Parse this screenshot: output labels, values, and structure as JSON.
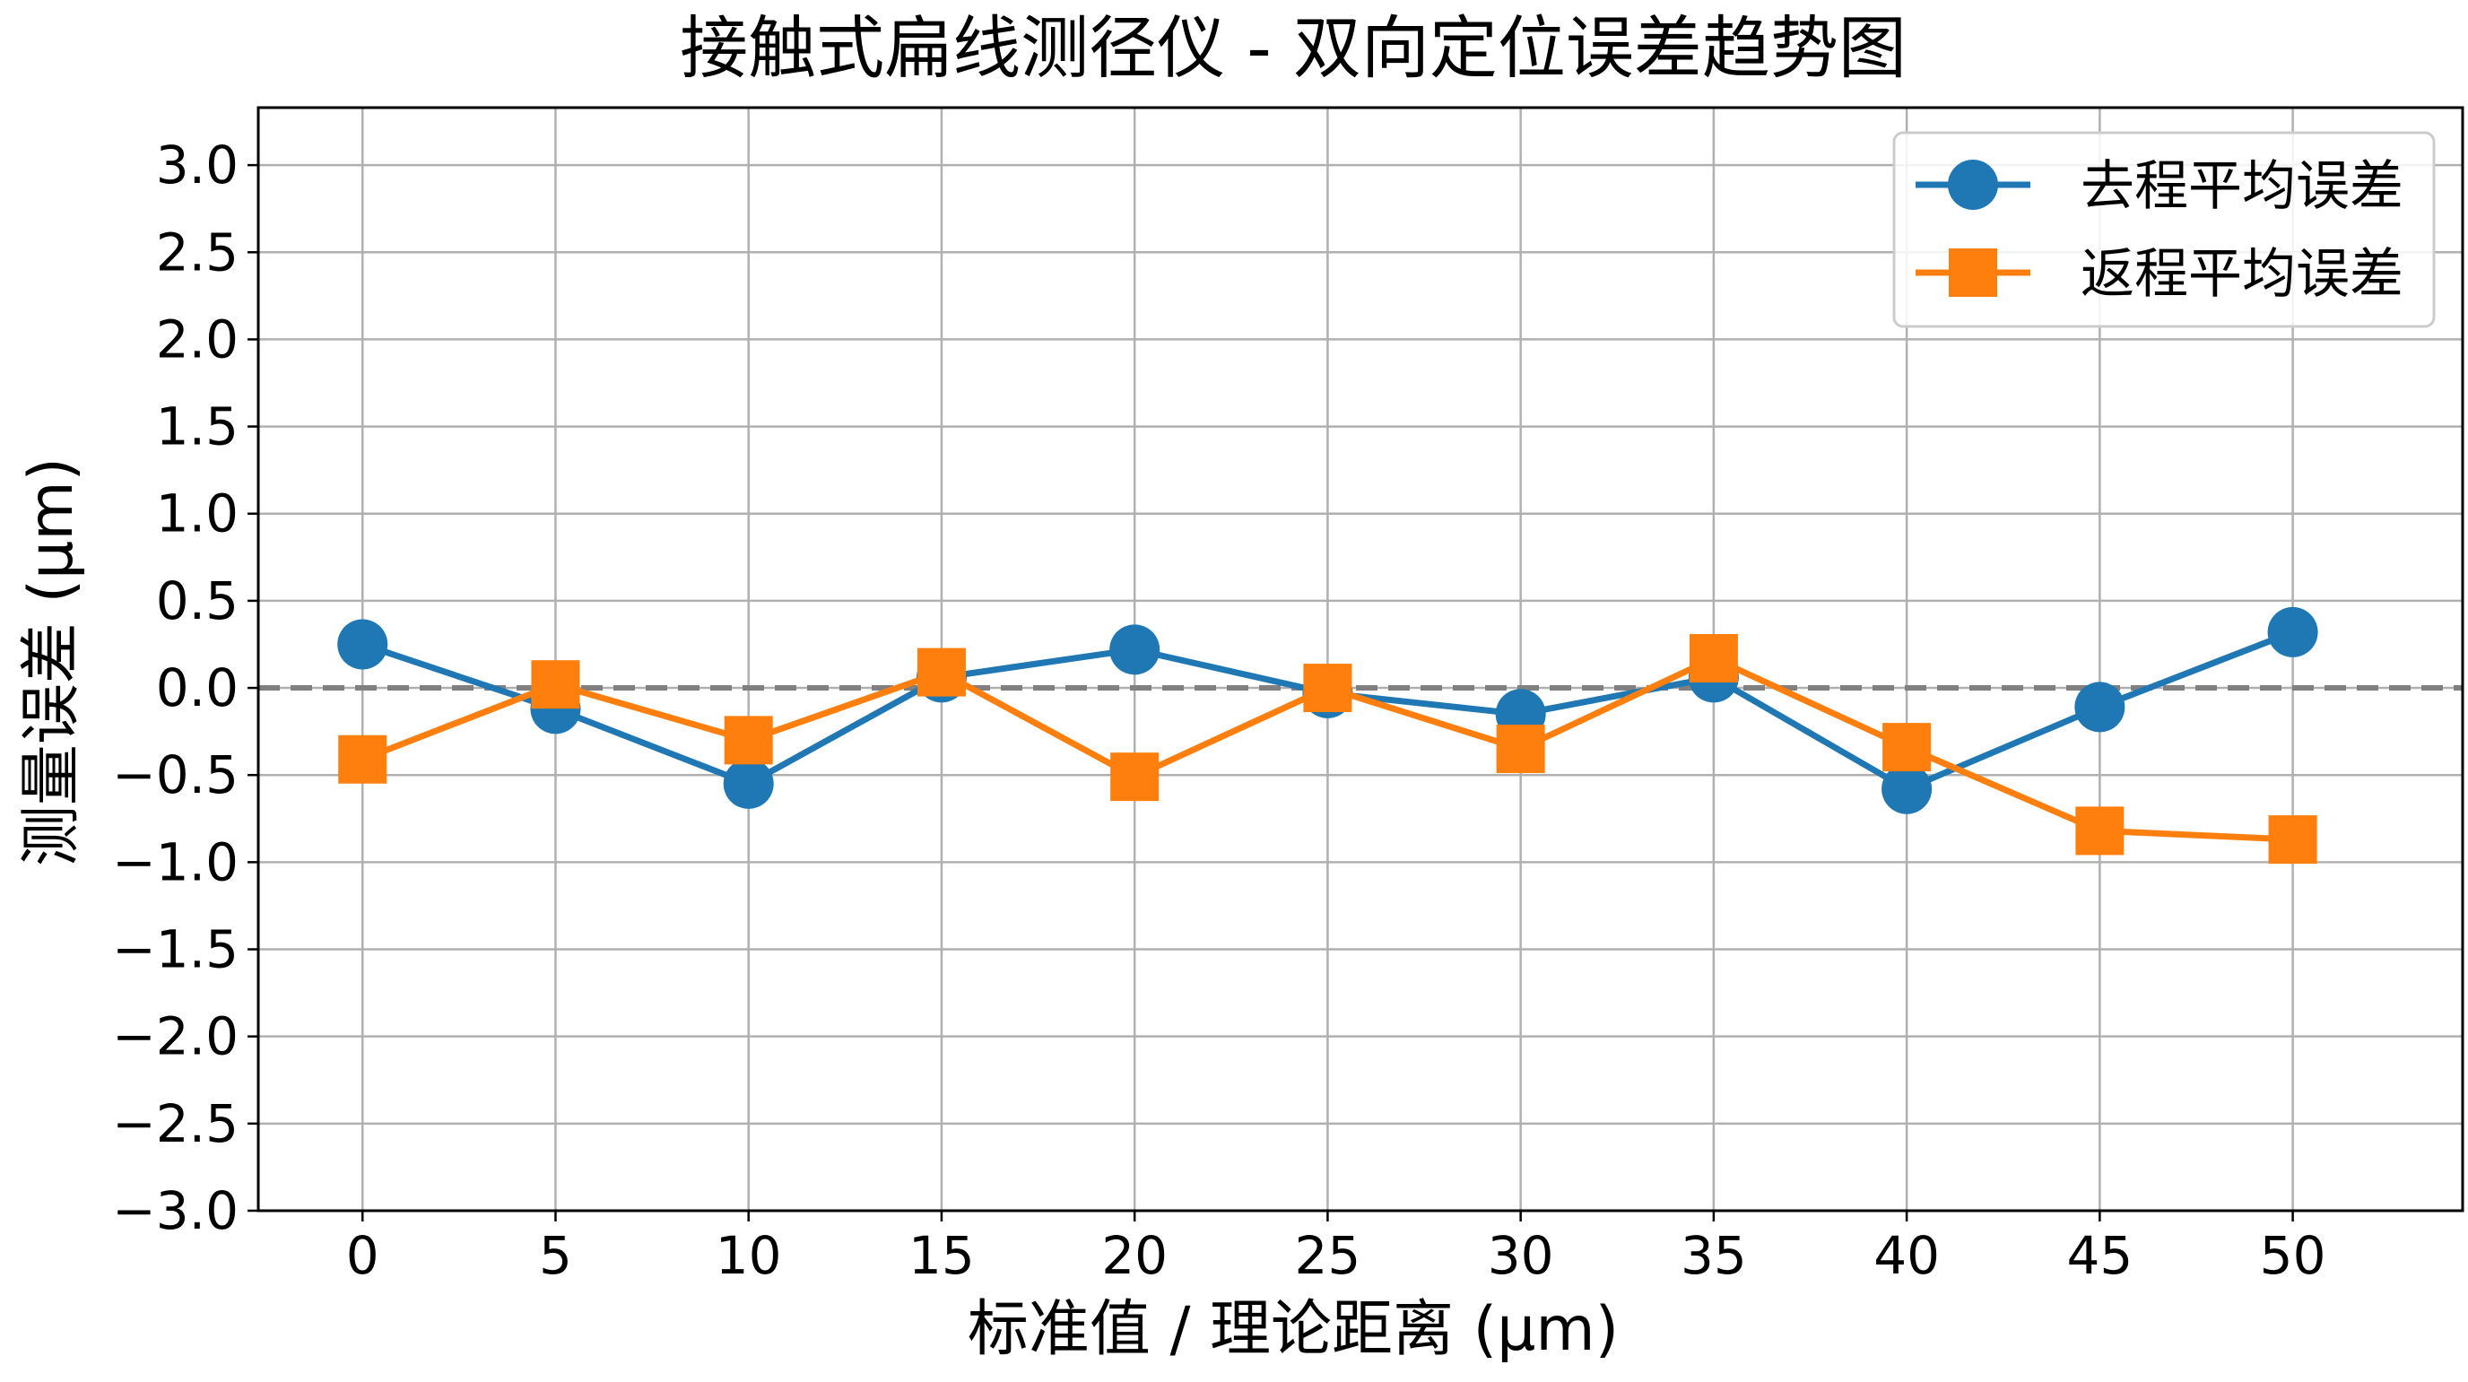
{
  "chart_data": {
    "type": "line",
    "title": "接触式扁线测径仪 - 双向定位误差趋势图",
    "xlabel": "标准值 / 理论距离 (μm)",
    "ylabel": "测量误差 (μm)",
    "x": [
      0,
      5,
      10,
      15,
      20,
      25,
      30,
      35,
      40,
      45,
      50
    ],
    "x_ticks": [
      0,
      5,
      10,
      15,
      20,
      25,
      30,
      35,
      40,
      45,
      50
    ],
    "x_tick_labels": [
      "0",
      "5",
      "10",
      "15",
      "20",
      "25",
      "30",
      "35",
      "40",
      "45",
      "50"
    ],
    "y_ticks": [
      3.0,
      2.5,
      2.0,
      1.5,
      1.0,
      0.5,
      0.0,
      -0.5,
      -1.0,
      -1.5,
      -2.0,
      -2.5,
      -3.0
    ],
    "y_tick_labels": [
      "3.0",
      "2.5",
      "2.0",
      "1.5",
      "1.0",
      "0.5",
      "0.0",
      "−0.5",
      "−1.0",
      "−1.5",
      "−2.0",
      "−2.5",
      "−3.0"
    ],
    "xlim": [
      -2.7,
      54.4
    ],
    "ylim": [
      -3.0,
      3.33
    ],
    "grid": true,
    "legend_position": "top-right",
    "reference_line": {
      "y": 0.0,
      "style": "dashed",
      "color": "#808080"
    },
    "series": [
      {
        "name": "去程平均误差",
        "color": "#1f77b4",
        "marker": "circle",
        "values": [
          0.25,
          -0.12,
          -0.55,
          0.06,
          0.22,
          -0.03,
          -0.15,
          0.06,
          -0.58,
          -0.11,
          0.32
        ]
      },
      {
        "name": "返程平均误差",
        "color": "#ff7f0e",
        "marker": "square",
        "values": [
          -0.41,
          0.02,
          -0.3,
          0.09,
          -0.51,
          0.0,
          -0.35,
          0.17,
          -0.34,
          -0.82,
          -0.87
        ]
      }
    ]
  }
}
